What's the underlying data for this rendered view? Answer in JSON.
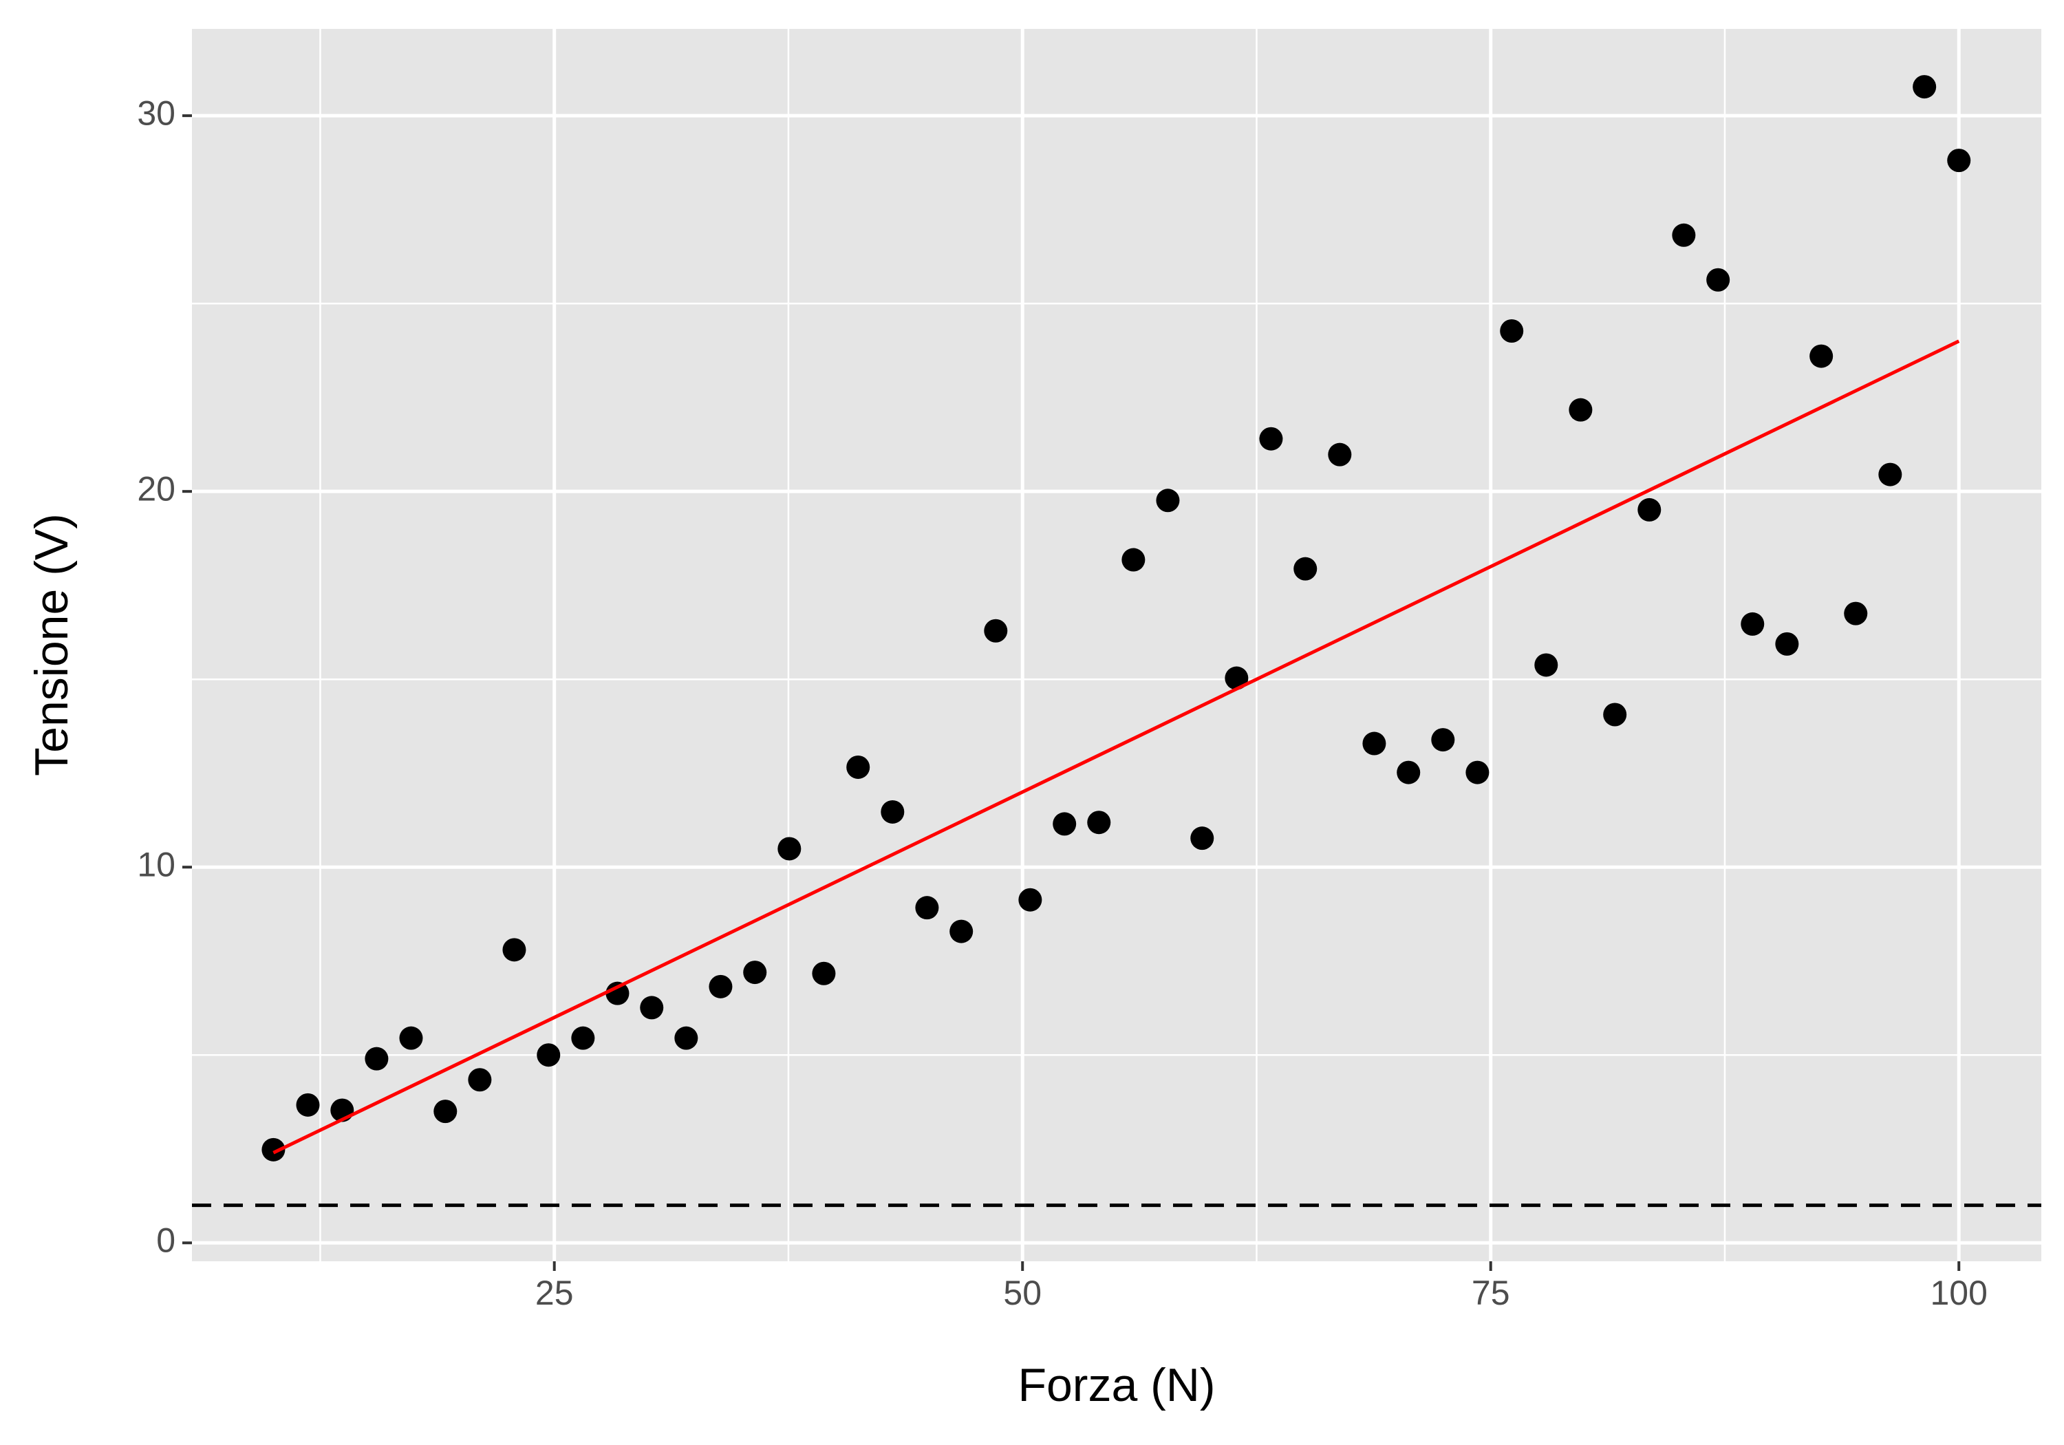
{
  "chart_data": {
    "type": "scatter",
    "xlabel": "Forza (N)",
    "ylabel": "Tensione (V)",
    "x": [
      10,
      11.84,
      13.67,
      15.51,
      17.35,
      19.18,
      21.02,
      22.86,
      24.69,
      26.53,
      28.37,
      30.2,
      32.04,
      33.88,
      35.71,
      37.55,
      39.39,
      41.22,
      43.06,
      44.9,
      46.73,
      48.57,
      50.41,
      52.24,
      54.08,
      55.92,
      57.76,
      59.59,
      61.43,
      63.27,
      65.1,
      66.94,
      68.78,
      70.61,
      72.45,
      74.29,
      76.12,
      77.96,
      79.8,
      81.63,
      83.47,
      85.31,
      87.14,
      88.98,
      90.82,
      92.65,
      94.49,
      96.33,
      98.16,
      100
    ],
    "series": [
      {
        "color": "#000000",
        "values": [
          2.48,
          3.67,
          3.53,
          4.9,
          5.45,
          3.5,
          4.34,
          7.8,
          5.0,
          5.45,
          6.64,
          6.26,
          5.45,
          6.82,
          7.2,
          10.49,
          7.17,
          12.66,
          11.47,
          8.92,
          8.29,
          16.29,
          9.13,
          11.15,
          11.19,
          18.18,
          19.76,
          10.77,
          15.03,
          21.4,
          17.94,
          20.98,
          13.29,
          12.52,
          13.39,
          12.52,
          24.27,
          15.38,
          22.17,
          14.06,
          19.51,
          26.82,
          25.63,
          16.47,
          15.94,
          23.6,
          16.75,
          20.45,
          30.77,
          28.81
        ]
      }
    ],
    "fit_line": {
      "x": [
        10,
        100
      ],
      "y": [
        2.4,
        24
      ],
      "color": "#ff0000"
    },
    "hline": {
      "y": 1,
      "color": "#000000",
      "dashed": true
    },
    "xlim": [
      5.65,
      104.4
    ],
    "ylim": [
      -0.49,
      32.31
    ],
    "xticks": [
      25,
      50,
      75,
      100
    ],
    "yticks": [
      0,
      10,
      20,
      30
    ],
    "x_minor_grid": [
      12.5,
      37.5,
      62.5,
      87.5
    ],
    "y_minor_grid": [
      5,
      15,
      25
    ],
    "grid": true
  }
}
